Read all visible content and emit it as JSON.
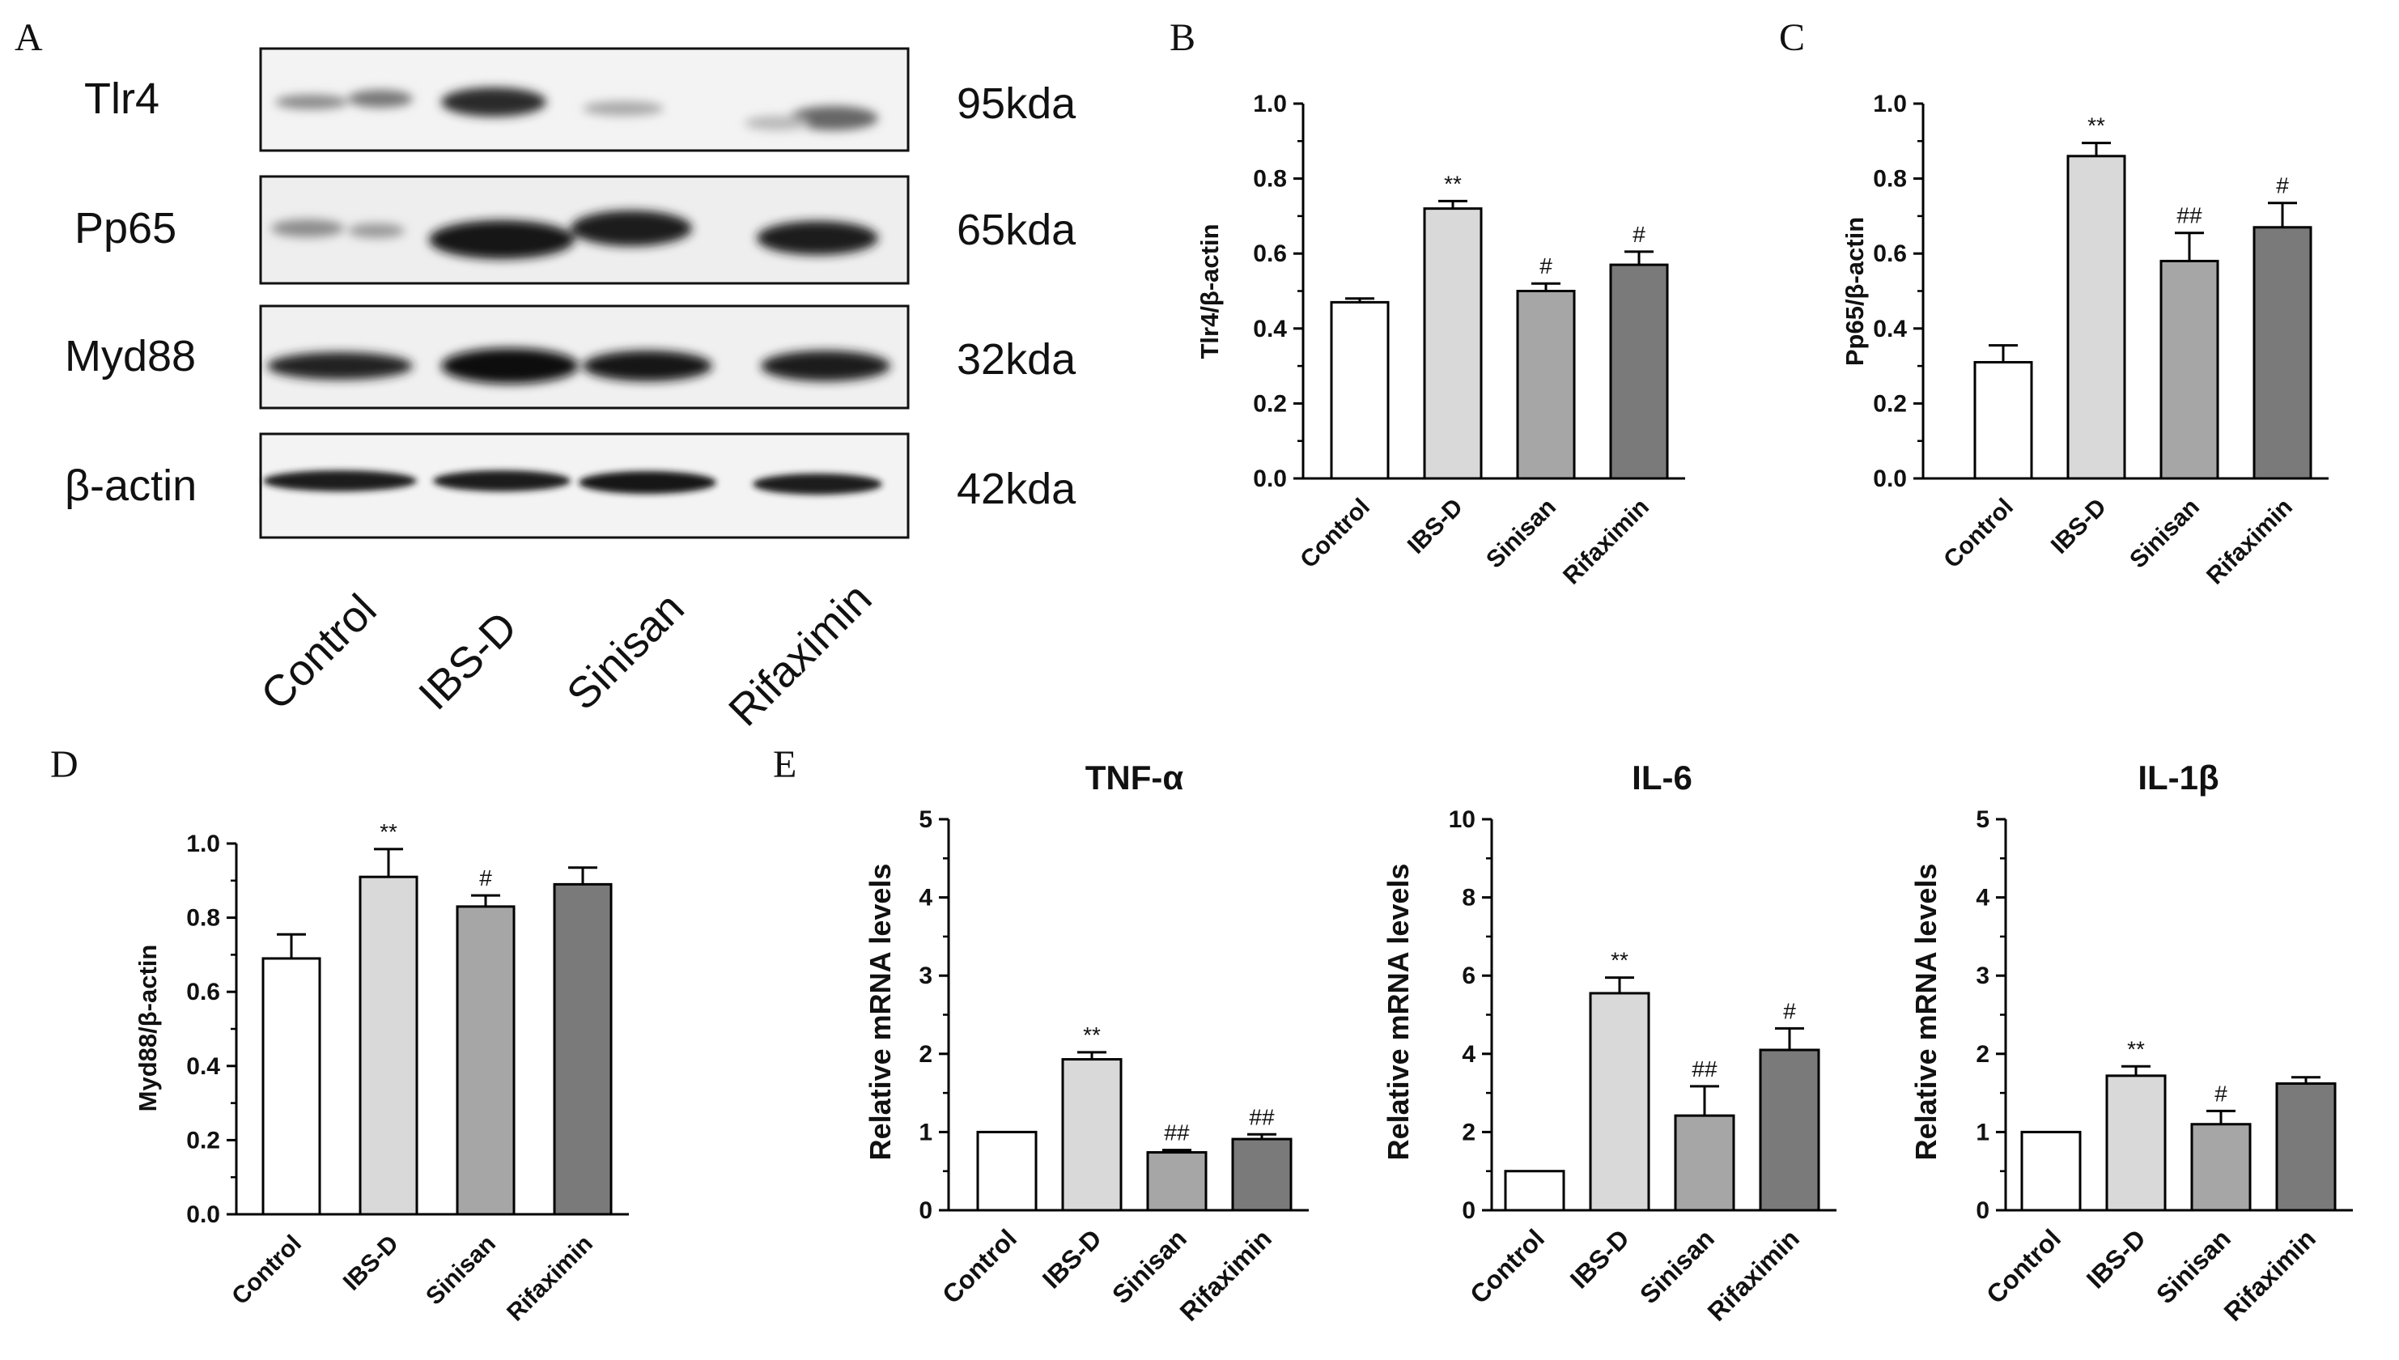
{
  "panel_letters": {
    "A": "A",
    "B": "B",
    "C": "C",
    "D": "D",
    "E": "E"
  },
  "blot": {
    "rows": [
      {
        "name": "Tlr4",
        "size": "95kda"
      },
      {
        "name": "Pp65",
        "size": "65kda"
      },
      {
        "name": "Myd88",
        "size": "32kda"
      },
      {
        "name": "β-actin",
        "size": "42kda"
      }
    ],
    "lanes": [
      "Control",
      "IBS-D",
      "Sinisan",
      "Rifaximin"
    ]
  },
  "colors": {
    "control": "#ffffff",
    "ibsd": "#d9d9d9",
    "sinisan": "#a6a6a6",
    "rifaximin": "#7a7a7a",
    "axis": "#000000"
  },
  "chart_data": [
    {
      "id": "B",
      "type": "bar",
      "categories": [
        "Control",
        "IBS-D",
        "Sinisan",
        "Rifaximin"
      ],
      "values": [
        0.47,
        0.72,
        0.5,
        0.57
      ],
      "errors": [
        0.01,
        0.02,
        0.02,
        0.035
      ],
      "significance": [
        "",
        "**",
        "#",
        "#"
      ],
      "ylabel": "Tlr4/β-actin",
      "title": "",
      "ylim": [
        0,
        1.0
      ],
      "yticks": [
        "0.0",
        "0.2",
        "0.4",
        "0.6",
        "0.8",
        "1.0"
      ]
    },
    {
      "id": "C",
      "type": "bar",
      "categories": [
        "Control",
        "IBS-D",
        "Sinisan",
        "Rifaximin"
      ],
      "values": [
        0.31,
        0.86,
        0.58,
        0.67
      ],
      "errors": [
        0.045,
        0.035,
        0.075,
        0.065
      ],
      "significance": [
        "",
        "**",
        "##",
        "#"
      ],
      "ylabel": "Pp65/β-actin",
      "title": "",
      "ylim": [
        0,
        1.0
      ],
      "yticks": [
        "0.0",
        "0.2",
        "0.4",
        "0.6",
        "0.8",
        "1.0"
      ]
    },
    {
      "id": "D",
      "type": "bar",
      "categories": [
        "Control",
        "IBS-D",
        "Sinisan",
        "Rifaximin"
      ],
      "values": [
        0.69,
        0.91,
        0.83,
        0.89
      ],
      "errors": [
        0.065,
        0.075,
        0.03,
        0.045
      ],
      "significance": [
        "",
        "**",
        "#",
        ""
      ],
      "ylabel": "Myd88/β-actin",
      "title": "",
      "ylim": [
        0,
        1.0
      ],
      "yticks": [
        "0.0",
        "0.2",
        "0.4",
        "0.6",
        "0.8",
        "1.0"
      ]
    },
    {
      "id": "E1",
      "type": "bar",
      "categories": [
        "Control",
        "IBS-D",
        "Sinisan",
        "Rifaximin"
      ],
      "values": [
        1.0,
        1.93,
        0.74,
        0.91
      ],
      "errors": [
        0.0,
        0.09,
        0.03,
        0.06
      ],
      "significance": [
        "",
        "**",
        "##",
        "##"
      ],
      "ylabel": "Relative mRNA levels",
      "title": "TNF-α",
      "ylim": [
        0,
        5
      ],
      "yticks": [
        "0",
        "1",
        "2",
        "3",
        "4",
        "5"
      ]
    },
    {
      "id": "E2",
      "type": "bar",
      "categories": [
        "Control",
        "IBS-D",
        "Sinisan",
        "Rifaximin"
      ],
      "values": [
        1.0,
        5.55,
        2.42,
        4.1
      ],
      "errors": [
        0.0,
        0.4,
        0.75,
        0.55
      ],
      "significance": [
        "",
        "**",
        "##",
        "#"
      ],
      "ylabel": "Relative mRNA levels",
      "title": "IL-6",
      "ylim": [
        0,
        10
      ],
      "yticks": [
        "0",
        "2",
        "4",
        "6",
        "8",
        "10"
      ]
    },
    {
      "id": "E3",
      "type": "bar",
      "categories": [
        "Control",
        "IBS-D",
        "Sinisan",
        "Rifaximin"
      ],
      "values": [
        1.0,
        1.72,
        1.1,
        1.62
      ],
      "errors": [
        0.0,
        0.12,
        0.17,
        0.08
      ],
      "significance": [
        "",
        "**",
        "#",
        ""
      ],
      "ylabel": "Relative mRNA levels",
      "title": "IL-1β",
      "ylim": [
        0,
        5
      ],
      "yticks": [
        "0",
        "1",
        "2",
        "3",
        "4",
        "5"
      ]
    }
  ]
}
